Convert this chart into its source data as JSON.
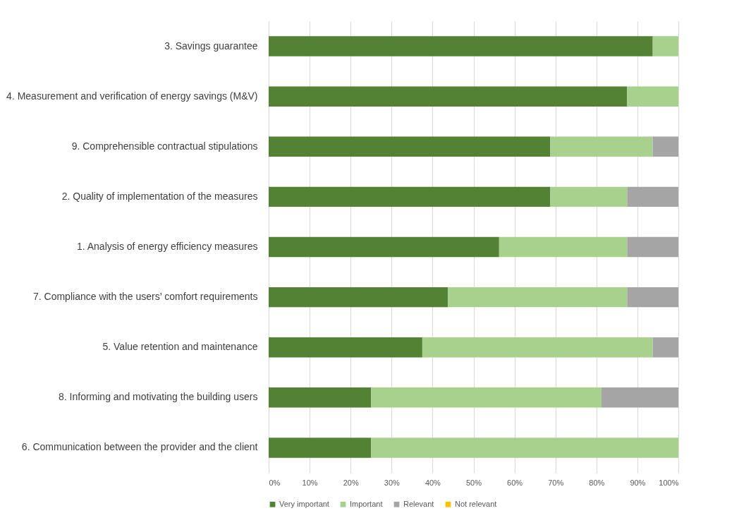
{
  "chart_data": {
    "type": "bar",
    "orientation": "horizontal",
    "stacked": true,
    "categories": [
      "3. Savings guarantee",
      "4. Measurement and verification of energy savings (M&V)",
      "9. Comprehensible contractual stipulations",
      "2. Quality of implementation of the measures",
      "1. Analysis of energy efficiency measures",
      "7. Compliance with the users’ comfort requirements",
      "5. Value retention and maintenance",
      "8. Informing and motivating the building users",
      "6. Communication between the provider and the client"
    ],
    "series": [
      {
        "name": "Very important",
        "color": "#548235",
        "values": [
          93.75,
          87.5,
          68.75,
          68.75,
          56.25,
          43.75,
          37.5,
          25,
          25
        ]
      },
      {
        "name": "Important",
        "color": "#a9d18e",
        "values": [
          6.25,
          12.5,
          25,
          18.75,
          31.25,
          43.75,
          56.25,
          56.25,
          75
        ]
      },
      {
        "name": "Relevant",
        "color": "#a5a5a5",
        "values": [
          0,
          0,
          6.25,
          12.5,
          12.5,
          12.5,
          6.25,
          18.75,
          0
        ]
      },
      {
        "name": "Not relevant",
        "color": "#ffc000",
        "values": [
          0,
          0,
          0,
          0,
          0,
          0,
          0,
          0,
          0
        ]
      }
    ],
    "xlim": [
      0,
      100
    ],
    "xticks": [
      {
        "value": 0,
        "label": "0%"
      },
      {
        "value": 10,
        "label": "10%"
      },
      {
        "value": 20,
        "label": "20%"
      },
      {
        "value": 30,
        "label": "30%"
      },
      {
        "value": 40,
        "label": "40%"
      },
      {
        "value": 50,
        "label": "50%"
      },
      {
        "value": 60,
        "label": "60%"
      },
      {
        "value": 70,
        "label": "70%"
      },
      {
        "value": 80,
        "label": "80%"
      },
      {
        "value": 90,
        "label": "90%"
      },
      {
        "value": 100,
        "label": "100%"
      }
    ],
    "grid": "x",
    "legend": "bottom"
  }
}
